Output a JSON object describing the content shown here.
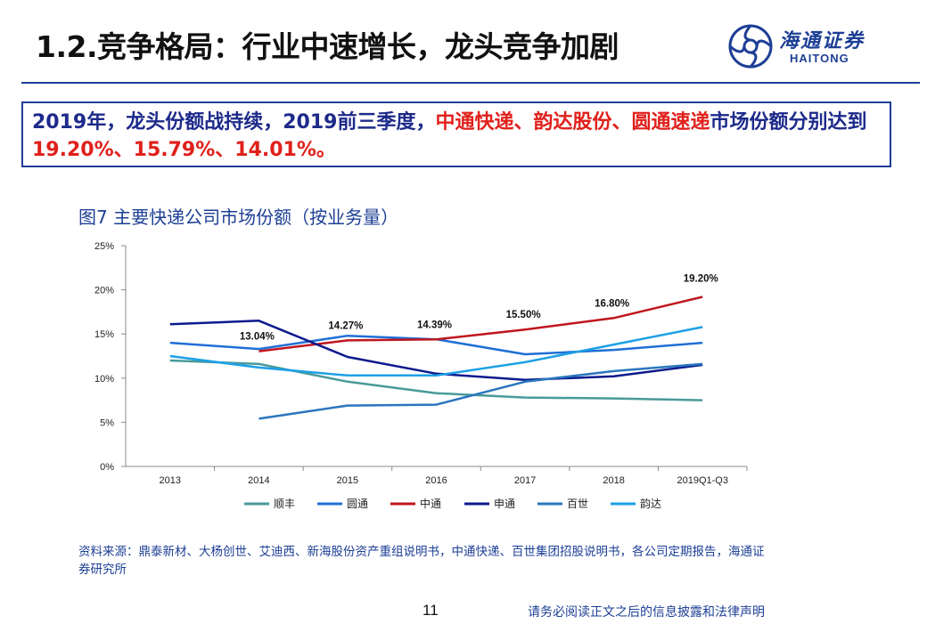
{
  "title": "1.2.竞争格局：行业中速增长，龙头竞争加剧",
  "logo": {
    "cn": "海通证券",
    "en": "HAITONG"
  },
  "summary": {
    "part1": "2019年，龙头份额战持续，2019前三季度，",
    "highlight1": "中通快递、韵达股份、圆通速递",
    "part2": "市场份额分别达到",
    "highlight2": "19.20%、15.79%、14.01%",
    "part3": "。"
  },
  "figure_title": "图7 主要快递公司市场份额（按业务量）",
  "source": "资料来源：鼎泰新材、大杨创世、艾迪西、新海股份资产重组说明书，中通快递、百世集团招股说明书，各公司定期报告，海通证券研究所",
  "page_number": "11",
  "disclaimer": "请务必阅读正文之后的信息披露和法律声明",
  "chart_data": {
    "type": "line",
    "categories": [
      "2013",
      "2014",
      "2015",
      "2016",
      "2017",
      "2018",
      "2019Q1-Q3"
    ],
    "ylim": [
      0,
      25
    ],
    "yticks": [
      "0%",
      "5%",
      "10%",
      "15%",
      "20%",
      "25%"
    ],
    "grid": false,
    "legend_position": "bottom",
    "series": [
      {
        "name": "顺丰",
        "color": "#4a9a9a",
        "values": [
          12.0,
          11.6,
          9.6,
          8.3,
          7.8,
          7.7,
          7.5
        ]
      },
      {
        "name": "圆通",
        "color": "#1f6fd6",
        "values": [
          14.0,
          13.3,
          14.8,
          14.4,
          12.7,
          13.2,
          14.0
        ]
      },
      {
        "name": "中通",
        "color": "#c0161d",
        "values": [
          null,
          13.04,
          14.27,
          14.39,
          15.5,
          16.8,
          19.2
        ],
        "labels": [
          "",
          "13.04%",
          "14.27%",
          "14.39%",
          "15.50%",
          "16.80%",
          "19.20%"
        ]
      },
      {
        "name": "申通",
        "color": "#0c1a8c",
        "values": [
          16.1,
          16.5,
          12.4,
          10.5,
          9.8,
          10.2,
          11.5
        ]
      },
      {
        "name": "百世",
        "color": "#2a76be",
        "values": [
          null,
          5.4,
          6.9,
          7.0,
          9.6,
          10.8,
          11.6
        ]
      },
      {
        "name": "韵达",
        "color": "#1ea0e6",
        "values": [
          12.5,
          11.2,
          10.3,
          10.3,
          11.8,
          13.8,
          15.79
        ]
      }
    ]
  }
}
